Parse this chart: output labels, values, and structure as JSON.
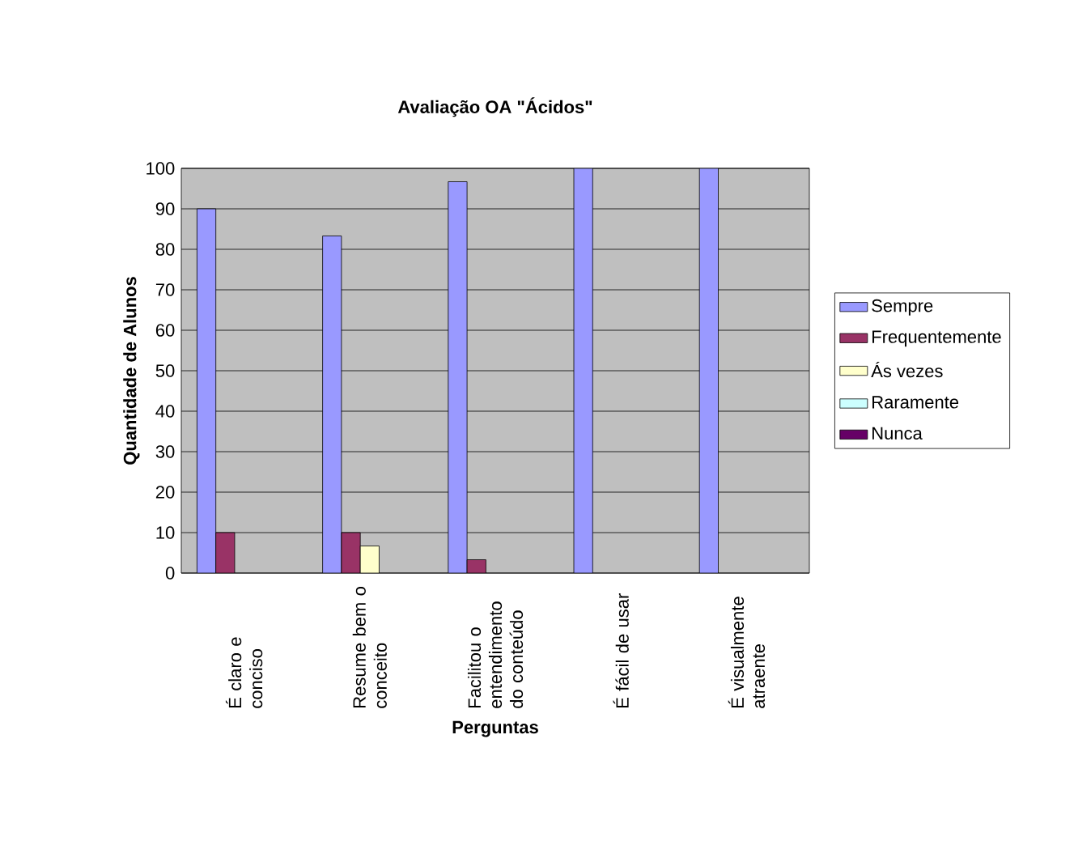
{
  "chart_data": {
    "type": "bar",
    "title": "Avaliação OA \"Ácidos\"",
    "xlabel": "Perguntas",
    "ylabel": "Quantidade de Alunos",
    "categories": [
      "É claro e conciso",
      "Resume bem o conceito",
      "Facilitou o entendimento do conteúdo",
      "É fácil de usar",
      "É visualmente atraente"
    ],
    "series": [
      {
        "name": "Sempre",
        "color": "#9999ff",
        "values": [
          90,
          83.3,
          96.7,
          100,
          100
        ]
      },
      {
        "name": "Frequentemente",
        "color": "#993366",
        "values": [
          10,
          10,
          3.3,
          null,
          null
        ]
      },
      {
        "name": "Ás vezes",
        "color": "#ffffcc",
        "values": [
          null,
          6.7,
          null,
          null,
          null
        ]
      },
      {
        "name": "Raramente",
        "color": "#ccffff",
        "values": [
          null,
          null,
          null,
          null,
          null
        ]
      },
      {
        "name": "Nunca",
        "color": "#660066",
        "values": [
          null,
          null,
          null,
          null,
          null
        ]
      }
    ],
    "ylim": [
      0,
      100
    ],
    "yticks": [
      0,
      10,
      20,
      30,
      40,
      50,
      60,
      70,
      80,
      90,
      100
    ],
    "grid": "y",
    "legend": "right"
  }
}
